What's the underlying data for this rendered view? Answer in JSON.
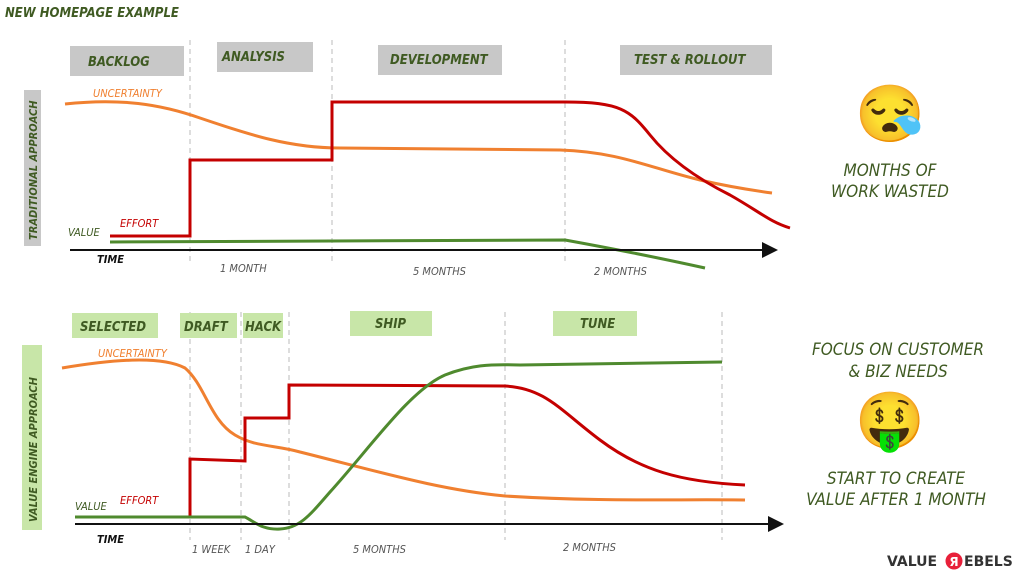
{
  "title": "NEW HOMEPAGE EXAMPLE",
  "colors": {
    "uncertainty": "#f08030",
    "effort": "#c40000",
    "value": "#4f8a2e",
    "text": "#3f5a22",
    "phase_traditional": "#c8c8c8",
    "phase_value_engine": "#c8e6a8",
    "logo_accent": "#e8203a"
  },
  "traditional": {
    "approach_label": "TRADITIONAL APPROACH",
    "phases": [
      "BACKLOG",
      "ANALYSIS",
      "DEVELOPMENT",
      "TEST & ROLLOUT"
    ],
    "uncertainty_label": "UNCERTAINTY",
    "effort_label": "EFFORT",
    "value_label": "VALUE",
    "time_label": "TIME",
    "durations": [
      "1 MONTH",
      "5 MONTHS",
      "2 MONTHS"
    ],
    "emoji": "😪",
    "emoji_name": "sleepy-face-icon",
    "message_line1": "MONTHS OF",
    "message_line2": "WORK WASTED"
  },
  "value_engine": {
    "approach_label": "VALUE ENGINE APPROACH",
    "phases": [
      "SELECTED",
      "DRAFT",
      "HACK",
      "SHIP",
      "TUNE"
    ],
    "uncertainty_label": "UNCERTAINTY",
    "effort_label": "EFFORT",
    "value_label": "VALUE",
    "time_label": "TIME",
    "durations": [
      "1 WEEK",
      "1 DAY",
      "5 MONTHS",
      "2 MONTHS"
    ],
    "message_top_line1": "FOCUS ON CUSTOMER",
    "message_top_line2": "& BIZ NEEDS",
    "emoji": "🤑",
    "emoji_name": "money-mouth-face-icon",
    "message_bottom_line1": "START TO CREATE",
    "message_bottom_line2": "VALUE AFTER 1 MONTH"
  },
  "logo": {
    "left": "VALUE",
    "mark": "Я",
    "right": "EBELS"
  }
}
